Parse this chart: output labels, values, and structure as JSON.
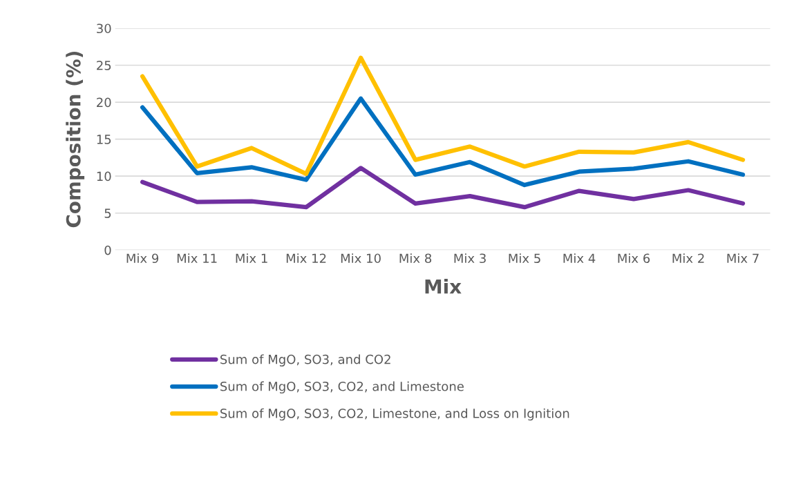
{
  "chart_data": {
    "type": "line",
    "xlabel": "Mix",
    "ylabel": "Composition (%)",
    "categories": [
      "Mix 9",
      "Mix 11",
      "Mix 1",
      "Mix 12",
      "Mix 10",
      "Mix 8",
      "Mix 3",
      "Mix 5",
      "Mix 4",
      "Mix 6",
      "Mix 2",
      "Mix 7"
    ],
    "series": [
      {
        "name": "Sum of MgO, SO3, and CO2",
        "color": "#7030a0",
        "values": [
          9.2,
          6.5,
          6.6,
          5.8,
          11.1,
          6.3,
          7.3,
          5.8,
          8.0,
          6.9,
          8.1,
          6.3
        ]
      },
      {
        "name": "Sum of MgO, SO3, CO2, and Limestone",
        "color": "#0070c0",
        "values": [
          19.3,
          10.4,
          11.2,
          9.5,
          20.5,
          10.2,
          11.9,
          8.8,
          10.6,
          11.0,
          12.0,
          10.2
        ]
      },
      {
        "name": "Sum of MgO, SO3, CO2, Limestone, and Loss on Ignition",
        "color": "#ffc000",
        "values": [
          23.5,
          11.3,
          13.8,
          10.3,
          26.0,
          12.2,
          14.0,
          11.3,
          13.3,
          13.2,
          14.6,
          12.2
        ]
      }
    ],
    "ylim": [
      0,
      30
    ],
    "yticks": [
      0,
      5,
      10,
      15,
      20,
      25,
      30
    ],
    "grid": "y",
    "legend": "bottom",
    "marker": "none",
    "line_style": "solid"
  }
}
